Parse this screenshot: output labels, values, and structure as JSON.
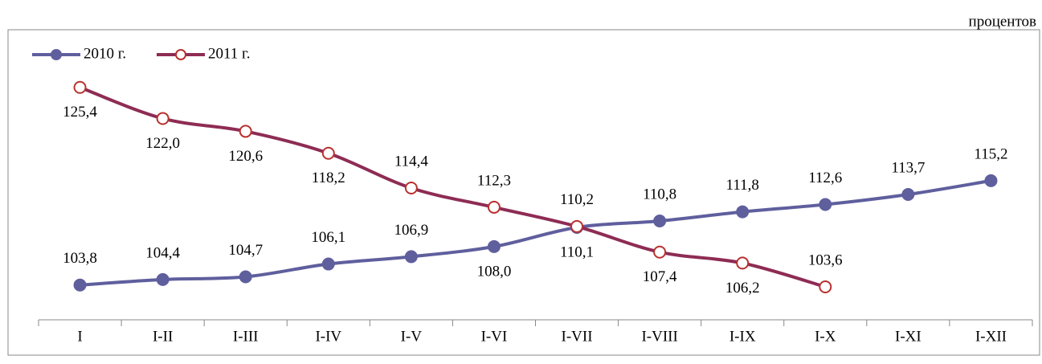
{
  "chart_data": {
    "type": "line",
    "unit_label": "процентов",
    "categories": [
      "I",
      "I-II",
      "I-III",
      "I-IV",
      "I-V",
      "I-VI",
      "I-VII",
      "I-VIII",
      "I-IX",
      "I-X",
      "I-XI",
      "I-XII"
    ],
    "series": [
      {
        "name": "2010 г.",
        "color": "#5f5f9e",
        "marker": "filled",
        "marker_color": "#5f5f9e",
        "values": [
          103.8,
          104.4,
          104.7,
          106.1,
          106.9,
          108.0,
          110.1,
          110.8,
          111.8,
          112.6,
          113.7,
          115.2
        ],
        "value_labels": [
          "103,8",
          "104,4",
          "104,7",
          "106,1",
          "106,9",
          "108,0",
          "110,1",
          "110,8",
          "111,8",
          "112,6",
          "113,7",
          "115,2"
        ]
      },
      {
        "name": "2011 г.",
        "color": "#8e2c54",
        "marker": "hollow",
        "marker_color": "#b8312f",
        "values": [
          125.4,
          122.0,
          120.6,
          118.2,
          114.4,
          112.3,
          110.2,
          107.4,
          106.2,
          103.6,
          null,
          null
        ],
        "value_labels": [
          "125,4",
          "122,0",
          "120,6",
          "118,2",
          "114,4",
          "112,3",
          "110,2",
          "107,4",
          "106,2",
          "103,6",
          null,
          null
        ]
      }
    ],
    "ylim": [
      100,
      131.7
    ],
    "legend": "top-left",
    "grid": false
  }
}
